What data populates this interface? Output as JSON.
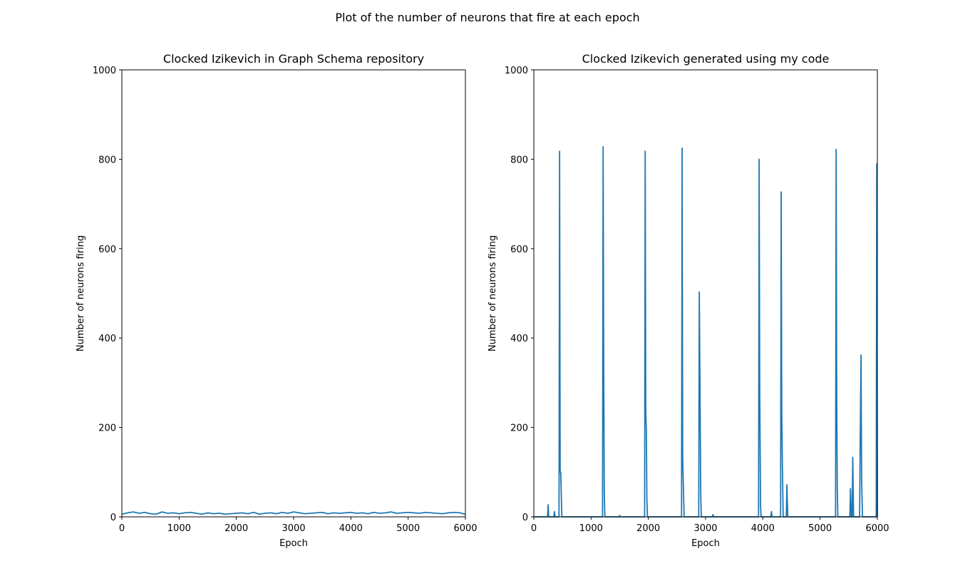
{
  "title": "Plot of the number of neurons that fire at each epoch",
  "chart_data": [
    {
      "type": "line",
      "title": "Clocked Izikevich in Graph Schema repository",
      "x_label": "Epoch",
      "y_label": "Number of neurons firing",
      "xlim": [
        0,
        6000
      ],
      "xticks": [
        0,
        1000,
        2000,
        3000,
        4000,
        5000,
        6000
      ],
      "ylim": [
        0,
        1000
      ],
      "yticks": [
        0,
        200,
        400,
        600,
        800,
        1000
      ],
      "series": [
        {
          "name": "neurons firing",
          "color": "#1f77b4",
          "x": [
            0,
            100,
            200,
            300,
            400,
            500,
            600,
            700,
            800,
            900,
            1000,
            1100,
            1200,
            1300,
            1400,
            1500,
            1600,
            1700,
            1800,
            1900,
            2000,
            2100,
            2200,
            2300,
            2400,
            2500,
            2600,
            2700,
            2800,
            2900,
            3000,
            3100,
            3200,
            3300,
            3400,
            3500,
            3600,
            3700,
            3800,
            3900,
            4000,
            4100,
            4200,
            4300,
            4400,
            4500,
            4600,
            4700,
            4800,
            4900,
            5000,
            5100,
            5200,
            5300,
            5400,
            5500,
            5600,
            5700,
            5800,
            5900,
            6000
          ],
          "values": [
            6,
            9,
            11,
            8,
            10,
            7,
            6,
            11,
            8,
            9,
            7,
            9,
            10,
            8,
            6,
            9,
            7,
            8,
            6,
            7,
            8,
            9,
            7,
            10,
            6,
            8,
            9,
            7,
            10,
            8,
            11,
            9,
            7,
            8,
            9,
            10,
            7,
            9,
            8,
            9,
            10,
            8,
            9,
            7,
            10,
            8,
            9,
            11,
            8,
            9,
            10,
            9,
            8,
            10,
            9,
            8,
            7,
            9,
            10,
            9,
            6
          ]
        }
      ]
    },
    {
      "type": "line",
      "title": "Clocked Izikevich generated using my code",
      "x_label": "Epoch",
      "y_label": "Number of neurons firing",
      "xlim": [
        0,
        6000
      ],
      "xticks": [
        0,
        1000,
        2000,
        3000,
        4000,
        5000,
        6000
      ],
      "ylim": [
        0,
        1000
      ],
      "yticks": [
        0,
        200,
        400,
        600,
        800,
        1000
      ],
      "series": [
        {
          "name": "neurons firing",
          "color": "#1f77b4",
          "x": [
            0,
            240,
            250,
            260,
            350,
            360,
            370,
            440,
            450,
            460,
            470,
            480,
            490,
            1200,
            1210,
            1220,
            1230,
            1240,
            1490,
            1500,
            1510,
            1935,
            1945,
            1955,
            1965,
            1975,
            1985,
            2580,
            2590,
            2600,
            2615,
            2625,
            2880,
            2890,
            2900,
            2915,
            2925,
            3120,
            3130,
            3140,
            3925,
            3935,
            3945,
            3960,
            3970,
            4140,
            4150,
            4160,
            4310,
            4320,
            4330,
            4340,
            4355,
            4410,
            4420,
            4435,
            5270,
            5280,
            5290,
            5300,
            5310,
            5520,
            5530,
            5545,
            5560,
            5570,
            5585,
            5690,
            5700,
            5715,
            5725,
            5740,
            5980,
            5990,
            6000
          ],
          "values": [
            0,
            0,
            27,
            0,
            0,
            12,
            0,
            0,
            818,
            100,
            100,
            48,
            0,
            0,
            828,
            360,
            60,
            0,
            0,
            3,
            0,
            0,
            818,
            230,
            195,
            35,
            0,
            0,
            825,
            130,
            50,
            0,
            0,
            503,
            325,
            55,
            0,
            0,
            5,
            0,
            0,
            800,
            290,
            25,
            0,
            0,
            12,
            0,
            0,
            727,
            240,
            125,
            0,
            0,
            72,
            0,
            0,
            822,
            275,
            65,
            0,
            0,
            63,
            0,
            0,
            133,
            0,
            0,
            160,
            362,
            85,
            0,
            0,
            790,
            0
          ]
        }
      ]
    }
  ]
}
